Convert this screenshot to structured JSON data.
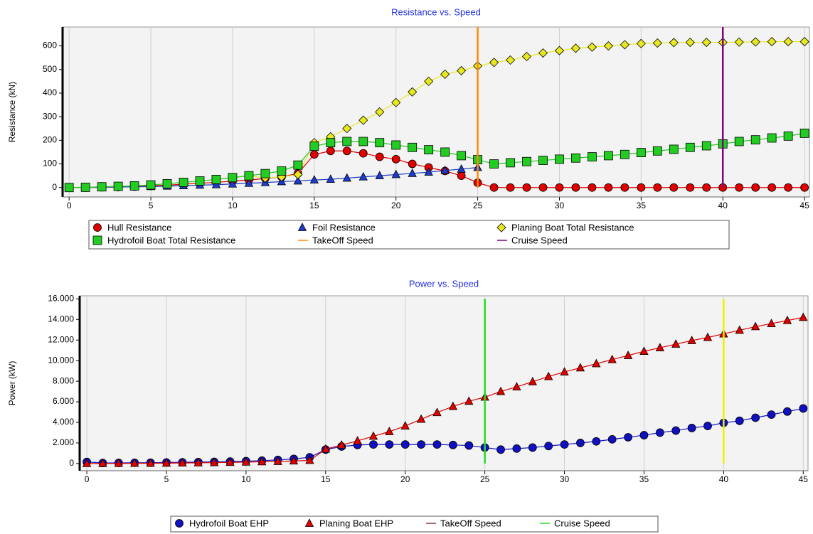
{
  "chart_data": [
    {
      "type": "line",
      "title": "Resistance vs. Speed",
      "y_label": "Resistance (kN)",
      "x": [
        0,
        1,
        2,
        3,
        4,
        5,
        6,
        7,
        8,
        9,
        10,
        11,
        12,
        13,
        14,
        15,
        16,
        17,
        18,
        19,
        20,
        21,
        22,
        23,
        24,
        25,
        26,
        27,
        28,
        29,
        30,
        31,
        32,
        33,
        34,
        35,
        36,
        37,
        38,
        39,
        40,
        41,
        42,
        43,
        44,
        45
      ],
      "xlim": [
        -0.4,
        45.3
      ],
      "xticks": [
        0,
        5,
        10,
        15,
        20,
        25,
        30,
        35,
        40,
        45
      ],
      "ylim": [
        -40,
        680
      ],
      "yticks": [
        0,
        100,
        200,
        300,
        400,
        500,
        600
      ],
      "grid": true,
      "series": [
        {
          "name": "Hull Resistance",
          "color": "#e00000",
          "marker": "circle",
          "values": [
            0,
            0,
            1,
            2,
            4,
            7,
            10,
            14,
            18,
            22,
            27,
            32,
            38,
            45,
            60,
            140,
            155,
            155,
            145,
            130,
            120,
            100,
            85,
            70,
            50,
            20,
            0,
            0,
            0,
            0,
            0,
            0,
            0,
            0,
            0,
            0,
            0,
            0,
            0,
            0,
            0,
            0,
            0,
            0,
            0,
            0
          ]
        },
        {
          "name": "Foil Resistance",
          "color": "#1e3cc8",
          "marker": "triangle",
          "values": [
            0,
            0.5,
            1,
            2,
            3,
            4,
            6,
            8,
            10,
            12,
            15,
            18,
            21,
            25,
            28,
            32,
            35,
            40,
            45,
            50,
            55,
            60,
            65,
            72,
            78,
            85,
            null,
            null,
            null,
            null,
            null,
            null,
            null,
            null,
            null,
            null,
            null,
            null,
            null,
            null,
            null,
            null,
            null,
            null,
            null,
            null
          ]
        },
        {
          "name": "Planing Boat Total Resistance",
          "color": "#e8e820",
          "marker": "diamond",
          "values": [
            0,
            1,
            3,
            5,
            7,
            11,
            16,
            22,
            28,
            34,
            42,
            50,
            40,
            45,
            55,
            190,
            215,
            250,
            285,
            320,
            360,
            405,
            450,
            480,
            495,
            515,
            530,
            540,
            555,
            570,
            580,
            590,
            595,
            600,
            605,
            610,
            612,
            614,
            615,
            615,
            615,
            616,
            617,
            618,
            618,
            618
          ]
        },
        {
          "name": "Hydrofoil Boat Total Resistance",
          "color": "#22cc22",
          "marker": "square",
          "values": [
            0,
            1,
            3,
            5,
            7,
            11,
            16,
            22,
            28,
            34,
            42,
            50,
            59,
            70,
            95,
            175,
            190,
            195,
            195,
            190,
            180,
            170,
            160,
            150,
            135,
            118,
            100,
            105,
            110,
            115,
            120,
            125,
            130,
            135,
            140,
            148,
            155,
            162,
            170,
            177,
            185,
            195,
            202,
            210,
            218,
            230
          ]
        },
        {
          "name": "TakeOff Speed",
          "color": "#ff8c00",
          "marker": "line",
          "x": [
            25,
            25
          ],
          "values": [
            0,
            680
          ]
        },
        {
          "name": "Cruise Speed",
          "color": "#800080",
          "marker": "line",
          "x": [
            40,
            40
          ],
          "values": [
            0,
            680
          ]
        }
      ]
    },
    {
      "type": "line",
      "title": "Power vs. Speed",
      "y_label": "Power (kW)",
      "x": [
        0,
        1,
        2,
        3,
        4,
        5,
        6,
        7,
        8,
        9,
        10,
        11,
        12,
        13,
        14,
        15,
        16,
        17,
        18,
        19,
        20,
        21,
        22,
        23,
        24,
        25,
        26,
        27,
        28,
        29,
        30,
        31,
        32,
        33,
        34,
        35,
        36,
        37,
        38,
        39,
        40,
        41,
        42,
        43,
        44,
        45
      ],
      "xlim": [
        -0.45,
        45.3
      ],
      "xticks": [
        0,
        5,
        10,
        15,
        20,
        25,
        30,
        35,
        40,
        45
      ],
      "ylim": [
        -700,
        16300
      ],
      "yticks": [
        0,
        {
          "value": 2000,
          "label": "2.000"
        },
        {
          "value": 4000,
          "label": "4.000"
        },
        {
          "value": 6000,
          "label": "6.000"
        },
        {
          "value": 8000,
          "label": "8.000"
        },
        {
          "value": 10000,
          "label": "10.000"
        },
        {
          "value": 12000,
          "label": "12.000"
        },
        {
          "value": 14000,
          "label": "14.000"
        },
        {
          "value": 16000,
          "label": "16.000"
        }
      ],
      "grid": true,
      "series": [
        {
          "name": "Hydrofoil Boat EHP",
          "color": "#1010c0",
          "marker": "circle",
          "values": [
            150,
            50,
            60,
            70,
            80,
            100,
            120,
            140,
            160,
            190,
            230,
            280,
            350,
            450,
            600,
            1350,
            1650,
            1800,
            1850,
            1850,
            1850,
            1850,
            1850,
            1800,
            1750,
            1550,
            1350,
            1450,
            1550,
            1700,
            1850,
            2000,
            2150,
            2350,
            2550,
            2750,
            3000,
            3200,
            3450,
            3650,
            3950,
            4150,
            4450,
            4750,
            5050,
            5350
          ]
        },
        {
          "name": "Planing Boat EHP",
          "color": "#e00000",
          "marker": "triangle",
          "values": [
            0,
            5,
            10,
            15,
            25,
            35,
            50,
            70,
            90,
            110,
            140,
            170,
            200,
            250,
            300,
            1400,
            1800,
            2200,
            2650,
            3100,
            3650,
            4300,
            4950,
            5550,
            6050,
            6450,
            7000,
            7450,
            7950,
            8450,
            8900,
            9300,
            9700,
            10100,
            10500,
            10900,
            11250,
            11600,
            11950,
            12250,
            12600,
            12950,
            13300,
            13600,
            13900,
            14200
          ]
        },
        {
          "name": "TakeOff Speed",
          "color": "#22dd22",
          "legend_color": "#8b3a3a",
          "marker": "line",
          "x": [
            25,
            25
          ],
          "values": [
            0,
            16000
          ]
        },
        {
          "name": "Cruise Speed",
          "color": "#f0f000",
          "legend_color": "#22dd22",
          "marker": "line",
          "x": [
            40,
            40
          ],
          "values": [
            0,
            16000
          ]
        }
      ]
    }
  ]
}
